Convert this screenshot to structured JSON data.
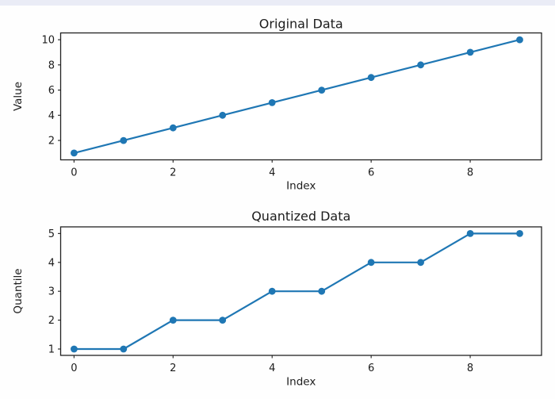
{
  "page": {
    "background": "#fefefe",
    "top_band_color": "#eaecf6",
    "plot_background": "#ffffff",
    "spine_color": "#222222",
    "text_color": "#1c1c1c"
  },
  "chart_data": [
    {
      "type": "line",
      "title": "Original Data",
      "xlabel": "Index",
      "ylabel": "Value",
      "x": [
        0,
        1,
        2,
        3,
        4,
        5,
        6,
        7,
        8,
        9
      ],
      "y": [
        1,
        2,
        3,
        4,
        5,
        6,
        7,
        8,
        9,
        10
      ],
      "x_ticks": [
        0,
        2,
        4,
        6,
        8
      ],
      "y_ticks": [
        2,
        4,
        6,
        8,
        10
      ],
      "xlim": [
        -0.27,
        9.44
      ],
      "ylim": [
        0.46,
        10.54
      ],
      "line_color": "#1f77b4",
      "marker": "circle",
      "grid": false,
      "legend_position": "none"
    },
    {
      "type": "line",
      "title": "Quantized Data",
      "xlabel": "Index",
      "ylabel": "Quantile",
      "x": [
        0,
        1,
        2,
        3,
        4,
        5,
        6,
        7,
        8,
        9
      ],
      "y": [
        1,
        1,
        2,
        2,
        3,
        3,
        4,
        4,
        5,
        5
      ],
      "x_ticks": [
        0,
        2,
        4,
        6,
        8
      ],
      "y_ticks": [
        1,
        2,
        3,
        4,
        5
      ],
      "xlim": [
        -0.27,
        9.44
      ],
      "ylim": [
        0.78,
        5.23
      ],
      "line_color": "#1f77b4",
      "marker": "circle",
      "grid": false,
      "legend_position": "none"
    }
  ]
}
